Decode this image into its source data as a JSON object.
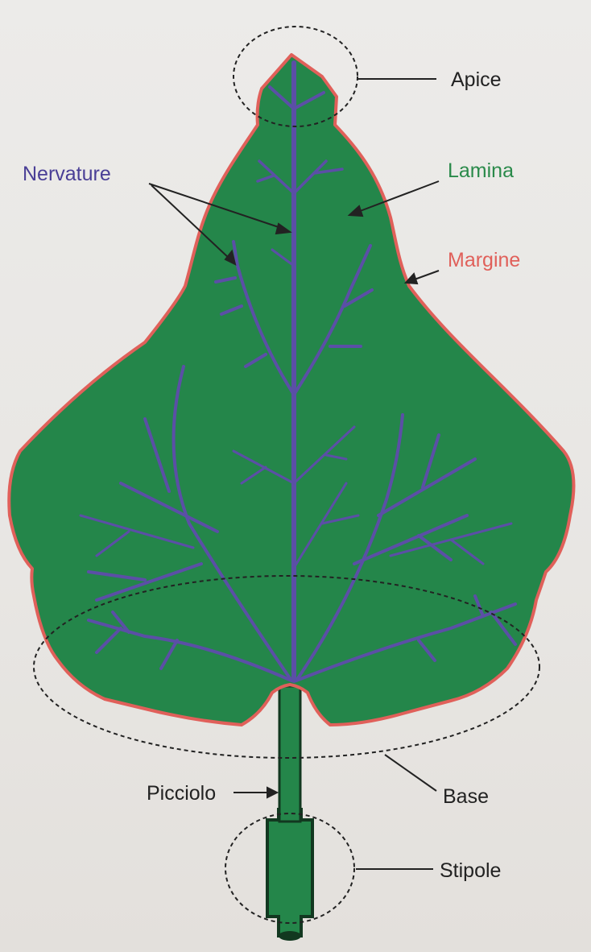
{
  "labels": {
    "apice": "Apice",
    "nervature": "Nervature",
    "lamina": "Lamina",
    "margine": "Margine",
    "picciolo": "Picciolo",
    "base": "Base",
    "stipole": "Stipole"
  },
  "colors": {
    "leaf_fill": "#24864a",
    "margin_stroke": "#e0605a",
    "vein": "#5b4fa6",
    "label_dark": "#222222",
    "label_nervature": "#4a3f96",
    "label_lamina": "#2a8a4a",
    "label_margine": "#e0605a"
  }
}
